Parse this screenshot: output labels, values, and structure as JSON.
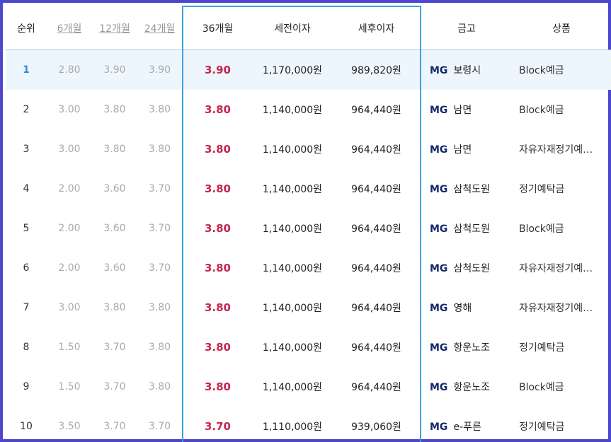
{
  "colors": {
    "frame": "#4c47cc",
    "highlight": "#3ea0de",
    "rate": "#c7264f",
    "first_row_bg": "#eef6fd"
  },
  "header": {
    "rank": "순위",
    "m6": "6개월",
    "m12": "12개월",
    "m24": "24개월",
    "m36": "36개월",
    "pretax": "세전이자",
    "posttax": "세후이자",
    "bank": "금고",
    "product": "상품"
  },
  "rows": [
    {
      "rank": "1",
      "m6": "2.80",
      "m12": "3.90",
      "m24": "3.90",
      "m36": "3.90",
      "pretax": "1,170,000원",
      "posttax": "989,820원",
      "bank_logo": "MG",
      "bank": "보령시",
      "product": "Block예금"
    },
    {
      "rank": "2",
      "m6": "3.00",
      "m12": "3.80",
      "m24": "3.80",
      "m36": "3.80",
      "pretax": "1,140,000원",
      "posttax": "964,440원",
      "bank_logo": "MG",
      "bank": "남면",
      "product": "Block예금"
    },
    {
      "rank": "3",
      "m6": "3.00",
      "m12": "3.80",
      "m24": "3.80",
      "m36": "3.80",
      "pretax": "1,140,000원",
      "posttax": "964,440원",
      "bank_logo": "MG",
      "bank": "남면",
      "product": "자유자재정기예…"
    },
    {
      "rank": "4",
      "m6": "2.00",
      "m12": "3.60",
      "m24": "3.70",
      "m36": "3.80",
      "pretax": "1,140,000원",
      "posttax": "964,440원",
      "bank_logo": "MG",
      "bank": "삼척도원",
      "product": "정기예탁금"
    },
    {
      "rank": "5",
      "m6": "2.00",
      "m12": "3.60",
      "m24": "3.70",
      "m36": "3.80",
      "pretax": "1,140,000원",
      "posttax": "964,440원",
      "bank_logo": "MG",
      "bank": "삼척도원",
      "product": "Block예금"
    },
    {
      "rank": "6",
      "m6": "2.00",
      "m12": "3.60",
      "m24": "3.70",
      "m36": "3.80",
      "pretax": "1,140,000원",
      "posttax": "964,440원",
      "bank_logo": "MG",
      "bank": "삼척도원",
      "product": "자유자재정기예…"
    },
    {
      "rank": "7",
      "m6": "3.00",
      "m12": "3.80",
      "m24": "3.80",
      "m36": "3.80",
      "pretax": "1,140,000원",
      "posttax": "964,440원",
      "bank_logo": "MG",
      "bank": "영해",
      "product": "자유자재정기예…"
    },
    {
      "rank": "8",
      "m6": "1.50",
      "m12": "3.70",
      "m24": "3.80",
      "m36": "3.80",
      "pretax": "1,140,000원",
      "posttax": "964,440원",
      "bank_logo": "MG",
      "bank": "항운노조",
      "product": "정기예탁금"
    },
    {
      "rank": "9",
      "m6": "1.50",
      "m12": "3.70",
      "m24": "3.80",
      "m36": "3.80",
      "pretax": "1,140,000원",
      "posttax": "964,440원",
      "bank_logo": "MG",
      "bank": "항운노조",
      "product": "Block예금"
    },
    {
      "rank": "10",
      "m6": "3.50",
      "m12": "3.70",
      "m24": "3.70",
      "m36": "3.70",
      "pretax": "1,110,000원",
      "posttax": "939,060원",
      "bank_logo": "MG",
      "bank": "e-푸른",
      "product": "정기예탁금"
    }
  ]
}
